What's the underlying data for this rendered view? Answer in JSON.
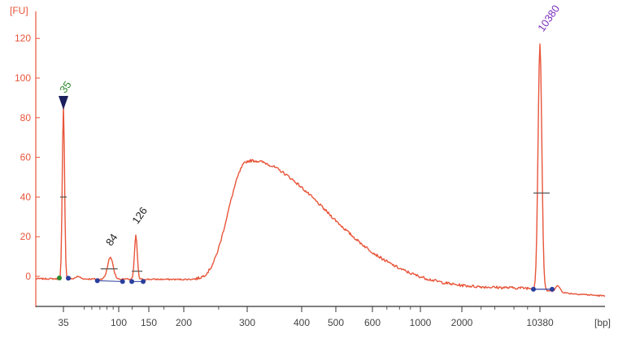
{
  "chart_data": {
    "type": "line",
    "title": "",
    "ylabel": "[FU]",
    "xlabel": "[bp]",
    "ylim": [
      -15,
      128
    ],
    "y_ticks": [
      0,
      20,
      40,
      60,
      80,
      100,
      120
    ],
    "x_ticks": [
      "35",
      "100",
      "150",
      "200",
      "300",
      "400",
      "500",
      "600",
      "1000",
      "2000",
      "10380"
    ],
    "x_scale": "categorical (bp ladder, non-linear)",
    "grid": false,
    "colors": {
      "trace": "#e8553a",
      "axis_y": "#e8553a",
      "axis_x": "#333333",
      "marker_lower": "#2e8b2e",
      "marker_upper": "#7b2fbe",
      "peak_label": "#222222",
      "region_dot": "#2a3f9e"
    },
    "peaks": [
      {
        "label": "35",
        "bp": 35,
        "fu": 87,
        "role": "lower marker"
      },
      {
        "label": "84",
        "bp": 84,
        "fu": 11
      },
      {
        "label": "126",
        "bp": 126,
        "fu": 22
      },
      {
        "label": "10380",
        "bp": 10380,
        "fu": 118,
        "role": "upper marker"
      }
    ],
    "smear": {
      "peak_bp": 300,
      "peak_fu": 61,
      "range_bp": [
        200,
        2000
      ]
    },
    "series": [
      {
        "values": [
          [
            35,
            -1
          ],
          [
            35,
            87
          ],
          [
            35,
            -1
          ],
          [
            84,
            11
          ],
          [
            100,
            -2
          ],
          [
            126,
            22
          ],
          [
            150,
            -2
          ],
          [
            200,
            3
          ],
          [
            250,
            50
          ],
          [
            300,
            61
          ],
          [
            400,
            43
          ],
          [
            500,
            25
          ],
          [
            600,
            12
          ],
          [
            1000,
            -4
          ],
          [
            2000,
            -6
          ],
          [
            10380,
            118
          ],
          [
            10380,
            -10
          ]
        ]
      }
    ]
  }
}
